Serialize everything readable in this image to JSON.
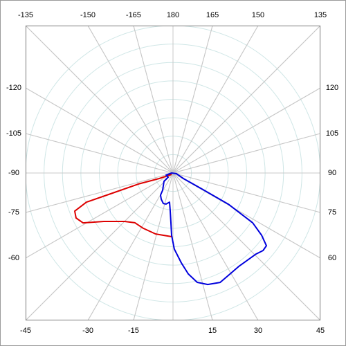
{
  "chart_data": {
    "type": "polar",
    "angle_ticks": [
      -135,
      -150,
      -165,
      180,
      165,
      150,
      135,
      -120,
      -105,
      -90,
      -75,
      -60,
      120,
      105,
      90,
      75,
      60,
      -45,
      -30,
      -15,
      15,
      30,
      45
    ],
    "rlim": [
      0,
      100
    ],
    "grid": true,
    "series": [
      {
        "color": "#dd0000",
        "closed": false,
        "angles": [
          -45,
          -68.2,
          -72.3,
          -71.6,
          -71.4,
          -68.8,
          -65.1,
          -61.0,
          -55.0,
          -45.0,
          -37.4,
          -28.3,
          -15.9,
          -1.2
        ],
        "values": [
          1.3,
          10.1,
          24.6,
          44.6,
          61.9,
          71.5,
          72.5,
          69.8,
          57.3,
          46.5,
          42.5,
          42.6,
          43.0,
          43.2
        ]
      },
      {
        "color": "#0000dd",
        "closed": true,
        "angles": [
          -73.3,
          -90,
          78.7,
          61.9,
          61.2,
          60.6,
          58.0,
          54.9,
          52.1,
          49.3,
          45.7,
          35.1,
          28.4,
          23.3,
          17.3,
          12.5,
          8.6,
          5.3,
          1.0,
          -1.3,
          -2.4,
          -4.2,
          -6.8,
          -12.5,
          -17.6,
          -24.1,
          -29.4,
          -31.0,
          -47.3,
          -49.4
        ],
        "values": [
          4.9,
          0.9,
          2.4,
          8.0,
          21.4,
          43.1,
          63.7,
          73.5,
          80.3,
          80.6,
          78.7,
          77.5,
          79.0,
          80.8,
          79.2,
          76.0,
          69.3,
          61.3,
          51.6,
          42.3,
          33.8,
          25.9,
          19.9,
          21.6,
          21.7,
          19.5,
          17.2,
          13.7,
          8.3,
          4.3
        ]
      }
    ]
  }
}
